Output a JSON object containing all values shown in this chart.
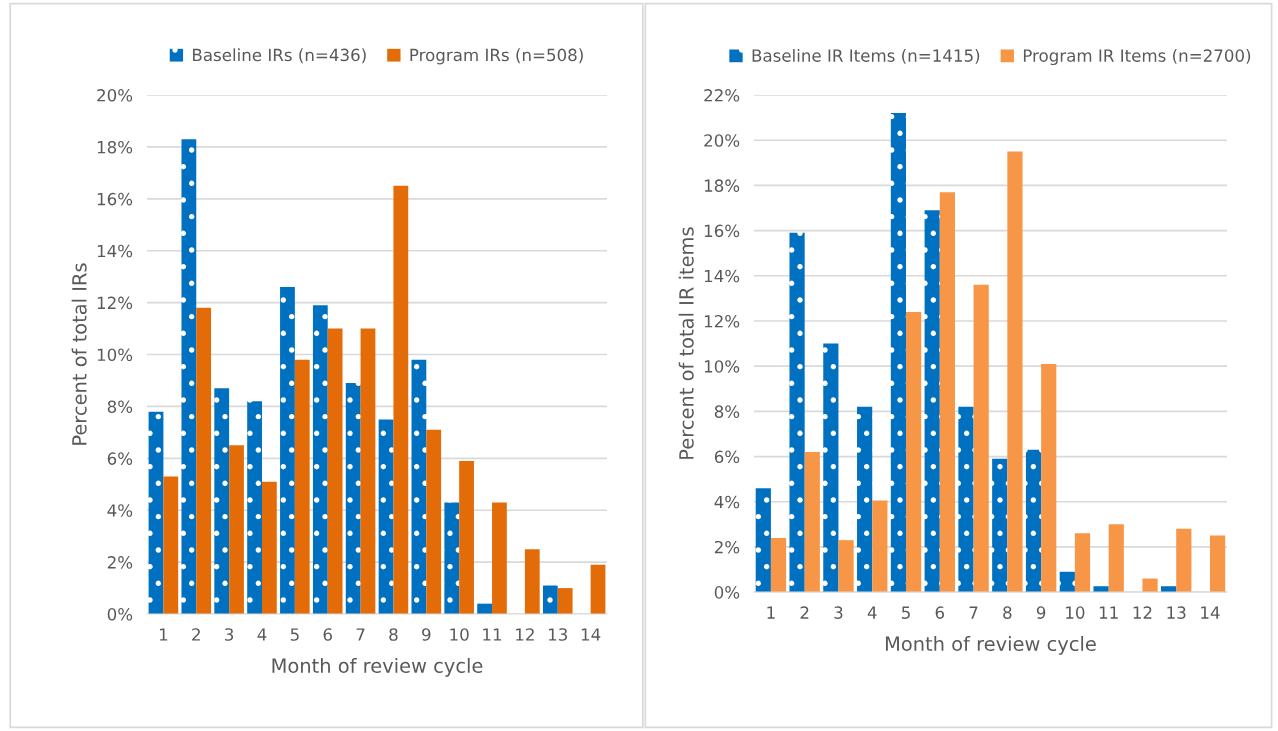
{
  "chart_data": [
    {
      "type": "bar",
      "categories": [
        "1",
        "2",
        "3",
        "4",
        "5",
        "6",
        "7",
        "8",
        "9",
        "10",
        "11",
        "12",
        "13",
        "14"
      ],
      "xlabel": "Month of review cycle",
      "ylabel": "Percent of total IRs",
      "series": [
        {
          "name": "Baseline IRs (n=436)",
          "color": "#0070c0",
          "values": [
            7.8,
            18.3,
            8.7,
            8.2,
            12.6,
            11.9,
            8.9,
            7.5,
            9.8,
            4.3,
            0.4,
            0,
            1.1,
            0
          ]
        },
        {
          "name": "Program IRs (n=508)",
          "color": "#e36c09",
          "values": [
            5.3,
            11.8,
            6.5,
            5.1,
            9.8,
            11.0,
            11.0,
            16.5,
            7.1,
            5.9,
            4.3,
            2.5,
            1.0,
            1.9
          ]
        }
      ],
      "ylim": [
        0,
        20
      ],
      "yticks": [
        {
          "value": 0,
          "label": "0%"
        },
        {
          "value": 2,
          "label": "2%"
        },
        {
          "value": 4,
          "label": "4%"
        },
        {
          "value": 6,
          "label": "6%"
        },
        {
          "value": 8,
          "label": "8%"
        },
        {
          "value": 10,
          "label": "10%"
        },
        {
          "value": 12,
          "label": "12%"
        },
        {
          "value": 14,
          "label": "14%"
        },
        {
          "value": 16,
          "label": "16%"
        },
        {
          "value": 18,
          "label": "18%"
        },
        {
          "value": 20,
          "label": "20%"
        }
      ],
      "grid": "y",
      "legend": "top"
    },
    {
      "type": "bar",
      "categories": [
        "1",
        "2",
        "3",
        "4",
        "5",
        "6",
        "7",
        "8",
        "9",
        "10",
        "11",
        "12",
        "13",
        "14"
      ],
      "xlabel": "Month of review cycle",
      "ylabel": "Percent of total IR items",
      "series": [
        {
          "name": "Baseline IR Items (n=1415)",
          "color": "#0070c0",
          "values": [
            4.6,
            15.9,
            11.0,
            8.2,
            21.2,
            16.9,
            8.2,
            5.9,
            6.3,
            0.9,
            0.26,
            0,
            0.26,
            0
          ]
        },
        {
          "name": "Program IR Items (n=2700)",
          "color": "#f79646",
          "values": [
            2.4,
            6.2,
            2.3,
            4.05,
            12.4,
            17.7,
            13.6,
            19.5,
            10.1,
            2.6,
            3.0,
            0.6,
            2.8,
            2.5
          ]
        }
      ],
      "ylim": [
        0,
        22
      ],
      "yticks": [
        {
          "value": 0,
          "label": "0%"
        },
        {
          "value": 2,
          "label": "2%"
        },
        {
          "value": 4,
          "label": "4%"
        },
        {
          "value": 6,
          "label": "6%"
        },
        {
          "value": 8,
          "label": "8%"
        },
        {
          "value": 10,
          "label": "10%"
        },
        {
          "value": 12,
          "label": "12%"
        },
        {
          "value": 14,
          "label": "14%"
        },
        {
          "value": 16,
          "label": "16%"
        },
        {
          "value": 18,
          "label": "18%"
        },
        {
          "value": 20,
          "label": "20%"
        },
        {
          "value": 22,
          "label": "22%"
        }
      ],
      "grid": "y",
      "legend": "top"
    }
  ]
}
